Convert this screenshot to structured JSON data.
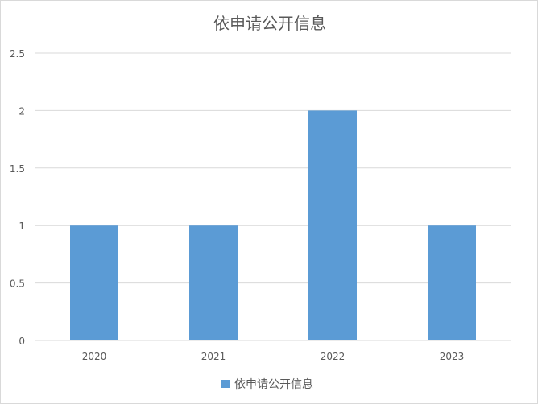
{
  "chart_data": {
    "type": "bar",
    "title": "依申请公开信息",
    "categories": [
      "2020",
      "2021",
      "2022",
      "2023"
    ],
    "series": [
      {
        "name": "依申请公开信息",
        "values": [
          1,
          1,
          2,
          1
        ],
        "color": "#5b9bd5"
      }
    ],
    "ylim": [
      0,
      2.5
    ],
    "yticks": [
      "0",
      "0.5",
      "1",
      "1.5",
      "2",
      "2.5"
    ],
    "grid": true,
    "legend": "bottom"
  }
}
